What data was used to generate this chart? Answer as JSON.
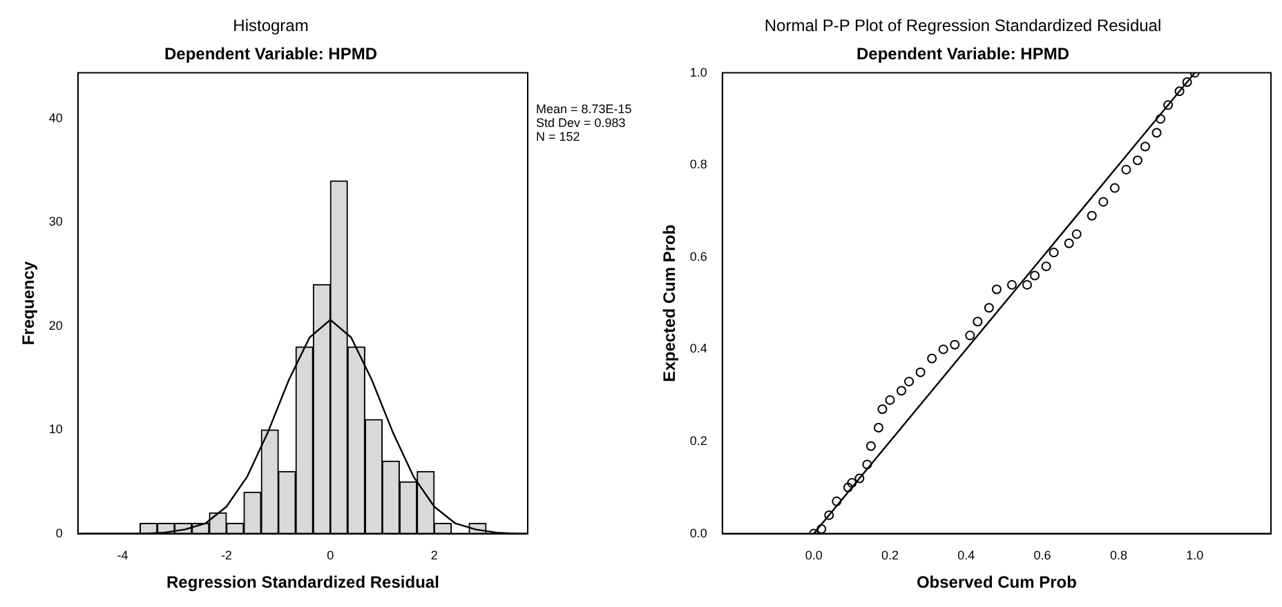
{
  "chart_data": [
    {
      "type": "histogram",
      "title": "Histogram",
      "subtitle": "Dependent Variable: HPMD",
      "xlabel": "Regression Standardized Residual",
      "ylabel": "Frequency",
      "xlim": [
        -4.86,
        3.8
      ],
      "xticks": [
        -4,
        -2,
        0,
        2
      ],
      "ylim": [
        0,
        44.4
      ],
      "yticks": [
        0,
        10,
        20,
        30,
        40
      ],
      "grid": false,
      "legend": false,
      "annotations": [
        "Mean = 8.73E-15",
        "Std Dev = 0.983",
        "N = 152"
      ],
      "series": [
        {
          "color": "#d9d9d9",
          "bins": [
            -3.67,
            -3.33,
            -3,
            -2.67,
            -2.33,
            -2,
            -1.67,
            -1.33,
            -1,
            -0.67,
            -0.33,
            0,
            0.33,
            0.67,
            1,
            1.33,
            1.67,
            2,
            2.33,
            2.67,
            3
          ],
          "values": [
            1,
            1,
            1,
            1,
            2,
            1,
            4,
            10,
            6,
            18,
            24,
            34,
            18,
            11,
            7,
            5,
            6,
            1,
            0,
            1
          ]
        },
        {
          "type": "line",
          "color": "#000000",
          "x": [
            -4.8,
            -4.4,
            -4,
            -3.6,
            -3.2,
            -2.8,
            -2.4,
            -2,
            -1.6,
            -1.2,
            -0.8,
            -0.4,
            0,
            0.4,
            0.8,
            1.2,
            1.6,
            2,
            2.4,
            2.8,
            3.2,
            3.6,
            3.8
          ],
          "values": [
            0,
            0,
            0,
            0,
            0.1,
            0.4,
            1,
            2.6,
            5.5,
            9.8,
            14.8,
            18.9,
            20.6,
            18.9,
            14.8,
            9.8,
            5.5,
            2.6,
            1,
            0.4,
            0.1,
            0,
            0
          ]
        }
      ]
    },
    {
      "type": "scatter",
      "title": "Normal P-P Plot of Regression Standardized Residual",
      "subtitle": "Dependent Variable: HPMD",
      "xlabel": "Observed Cum Prob",
      "ylabel": "Expected Cum Prob",
      "xlim": [
        -0.24,
        1.2
      ],
      "xticks": [
        {
          "value": 0,
          "label": "0.0"
        },
        {
          "value": 0.2,
          "label": "0.2"
        },
        {
          "value": 0.4,
          "label": "0.4"
        },
        {
          "value": 0.6,
          "label": "0.6"
        },
        {
          "value": 0.8,
          "label": "0.8"
        },
        {
          "value": 1,
          "label": "1.0"
        }
      ],
      "ylim": [
        0,
        1
      ],
      "yticks": [
        {
          "value": 0,
          "label": "0.0"
        },
        {
          "value": 0.2,
          "label": "0.2"
        },
        {
          "value": 0.4,
          "label": "0.4"
        },
        {
          "value": 0.6,
          "label": "0.6"
        },
        {
          "value": 0.8,
          "label": "0.8"
        },
        {
          "value": 1,
          "label": "1.0"
        }
      ],
      "grid": false,
      "legend": false,
      "series": [
        {
          "color": "#000000",
          "marker": "circle",
          "x": [
            0,
            0.02,
            0.04,
            0.06,
            0.09,
            0.1,
            0.12,
            0.14,
            0.15,
            0.17,
            0.18,
            0.2,
            0.23,
            0.25,
            0.28,
            0.31,
            0.34,
            0.37,
            0.41,
            0.43,
            0.46,
            0.48,
            0.52,
            0.56,
            0.58,
            0.61,
            0.63,
            0.67,
            0.69,
            0.73,
            0.76,
            0.79,
            0.82,
            0.85,
            0.87,
            0.9,
            0.91,
            0.93,
            0.96,
            0.98,
            1
          ],
          "values": [
            0,
            0.01,
            0.04,
            0.07,
            0.1,
            0.11,
            0.12,
            0.15,
            0.19,
            0.23,
            0.27,
            0.29,
            0.31,
            0.33,
            0.35,
            0.38,
            0.4,
            0.41,
            0.43,
            0.46,
            0.49,
            0.53,
            0.54,
            0.54,
            0.56,
            0.58,
            0.61,
            0.63,
            0.65,
            0.69,
            0.72,
            0.75,
            0.79,
            0.81,
            0.84,
            0.87,
            0.9,
            0.93,
            0.96,
            0.98,
            1
          ]
        },
        {
          "type": "line",
          "color": "#000000",
          "x": [
            0,
            1
          ],
          "values": [
            0,
            1
          ]
        }
      ]
    }
  ]
}
